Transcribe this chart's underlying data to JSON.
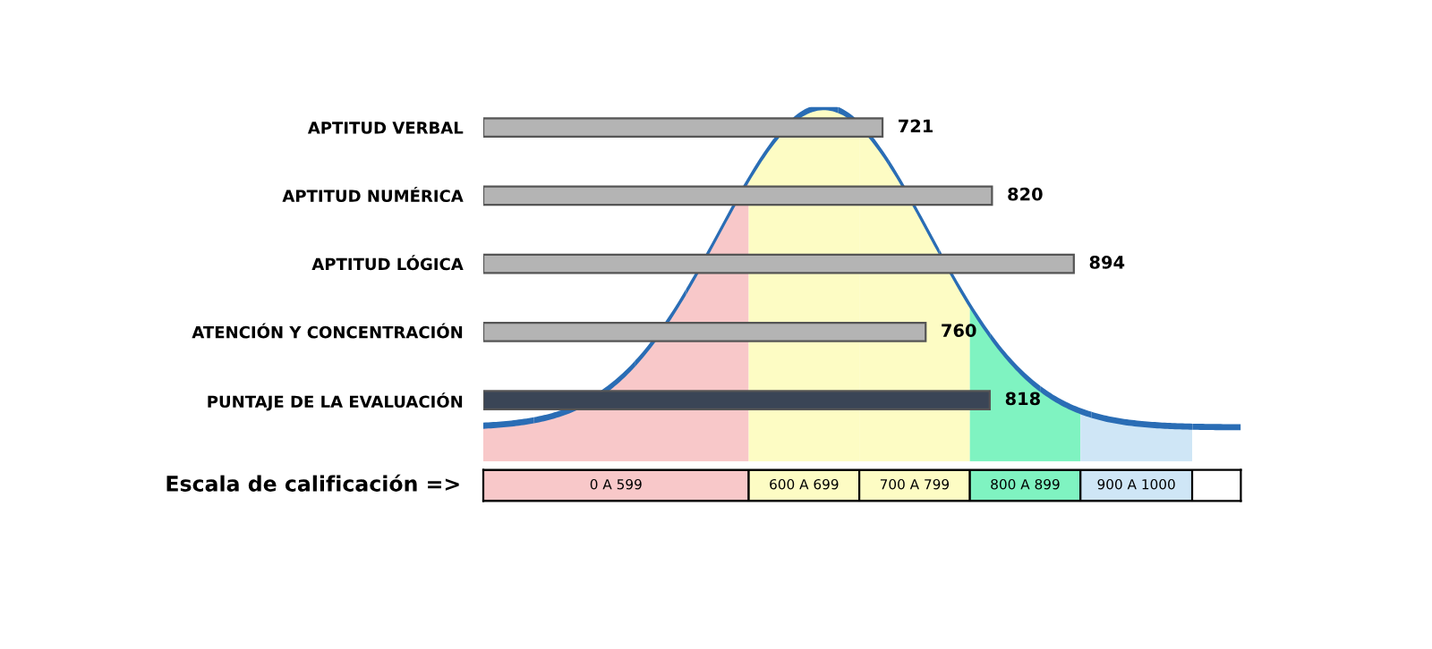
{
  "chart_data": {
    "type": "bar",
    "orientation": "horizontal",
    "categories": [
      "APTITUD VERBAL",
      "APTITUD NUMÉRICA",
      "APTITUD LÓGICA",
      "ATENCIÓN Y CONCENTRACIÓN",
      "PUNTAJE DE LA EVALUACIÓN"
    ],
    "values": [
      721,
      820,
      894,
      760,
      818
    ],
    "colors": [
      "#b4b4b4",
      "#b4b4b4",
      "#b4b4b4",
      "#b4b4b4",
      "#3a4556"
    ],
    "data_labels": true,
    "xlim": [
      360,
      1045
    ],
    "tick_labels": "y",
    "grid": false,
    "legend": false,
    "bands": [
      {
        "axis": "x",
        "from": 0,
        "to": 599,
        "label": "0 A 599",
        "color": "#f8c8c9"
      },
      {
        "axis": "x",
        "from": 600,
        "to": 699,
        "label": "600 A 699",
        "color": "#fdfcc4"
      },
      {
        "axis": "x",
        "from": 700,
        "to": 799,
        "label": "700 A 799",
        "color": "#fdfcc4"
      },
      {
        "axis": "x",
        "from": 800,
        "to": 899,
        "label": "800 A 899",
        "color": "#7ff3c1"
      },
      {
        "axis": "x",
        "from": 900,
        "to": 1000,
        "label": "900 A 1000",
        "color": "#cfe6f6"
      }
    ],
    "annotations": [
      "Escala de calificación =>"
    ]
  }
}
